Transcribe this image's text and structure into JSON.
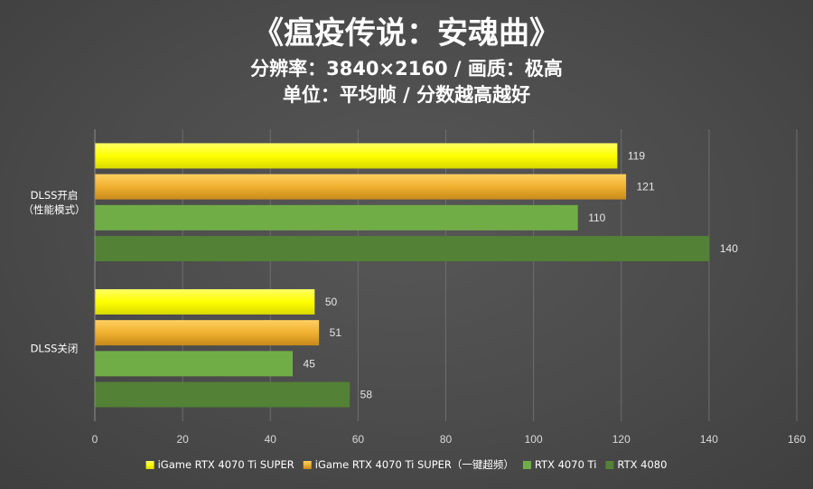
{
  "chart_data": {
    "type": "bar",
    "orientation": "horizontal",
    "title": "《瘟疫传说：安魂曲》",
    "subtitle_lines": [
      "分辨率：3840×2160 / 画质：极高",
      "单位：平均帧 / 分数越高越好"
    ],
    "categories": [
      "DLSS开启（性能模式）",
      "DLSS关闭"
    ],
    "category_label_lines": [
      [
        "DLSS开启",
        "（性能模式）"
      ],
      [
        "DLSS关闭"
      ]
    ],
    "series": [
      {
        "name": "iGame RTX 4070 Ti SUPER",
        "values": [
          119,
          50
        ],
        "color": "#ffff00"
      },
      {
        "name": "iGame RTX 4070 Ti SUPER（一键超频）",
        "values": [
          121,
          51
        ],
        "color": "#f0b030"
      },
      {
        "name": "RTX 4070 Ti",
        "values": [
          110,
          45
        ],
        "color": "#70ad47"
      },
      {
        "name": "RTX 4080",
        "values": [
          140,
          58
        ],
        "color": "#538135"
      }
    ],
    "xlim": [
      0,
      160
    ],
    "xticks": [
      0,
      20,
      40,
      60,
      80,
      100,
      120,
      140,
      160
    ],
    "grid": true,
    "legend_position": "bottom"
  }
}
